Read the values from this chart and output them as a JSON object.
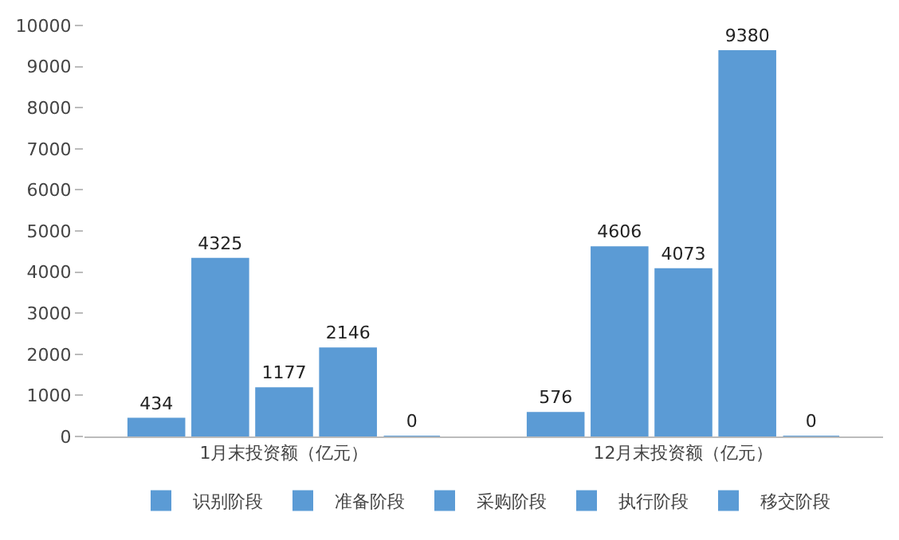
{
  "chart_data": {
    "type": "bar",
    "categories": [
      "1月末投资额（亿元）",
      "12月末投资额（亿元）"
    ],
    "series": [
      {
        "name": "识别阶段",
        "color": "#5b9bd5",
        "values": [
          434,
          576
        ]
      },
      {
        "name": "准备阶段",
        "color": "#5b9bd5",
        "values": [
          4325,
          4606
        ]
      },
      {
        "name": "采购阶段",
        "color": "#5b9bd5",
        "values": [
          1177,
          4073
        ]
      },
      {
        "name": "执行阶段",
        "color": "#5b9bd5",
        "values": [
          2146,
          9380
        ]
      },
      {
        "name": "移交阶段",
        "color": "#5b9bd5",
        "values": [
          0,
          0
        ]
      }
    ],
    "ylim": [
      0,
      10000
    ],
    "yticks": [
      0,
      1000,
      2000,
      3000,
      4000,
      5000,
      6000,
      7000,
      8000,
      9000,
      10000
    ],
    "legend": "bottom",
    "data_labels": true
  }
}
